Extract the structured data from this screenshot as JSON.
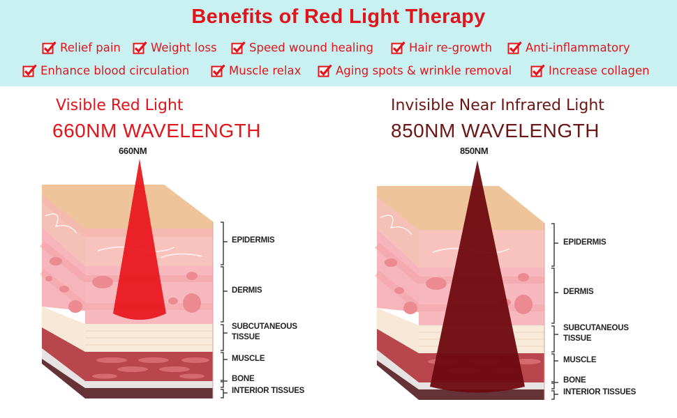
{
  "banner": {
    "title": "Benefits of Red Light Therapy",
    "row1": [
      "Relief pain",
      "Weight loss",
      "Speed wound healing",
      "Hair re-growth",
      "Anti-inflammatory"
    ],
    "row2": [
      "Enhance blood circulation",
      "Muscle relax",
      "Aging spots & wrinkle removal",
      "Increase collagen"
    ],
    "check_icon": "checkbox-check-icon",
    "accent_color": "#e1141b",
    "background_color": "#c9f1f1"
  },
  "left_panel": {
    "title": "Visible Red Light",
    "wavelength": "660NM WAVELENGTH",
    "beam_label": "660NM",
    "beam_color": "#e8141b"
  },
  "right_panel": {
    "title": "Invisible Near Infrared Light",
    "wavelength": "850NM WAVELENGTH",
    "beam_label": "850NM",
    "beam_color": "#6e0a10"
  },
  "layers": {
    "epidermis": "EPIDERMIS",
    "dermis": "DERMIS",
    "subcutaneous_line1": "SUBCUTANEOUS",
    "subcutaneous_line2": "TISSUE",
    "muscle": "MUSCLE",
    "bone": "BONE",
    "interior": "INTERIOR TISSUES"
  }
}
